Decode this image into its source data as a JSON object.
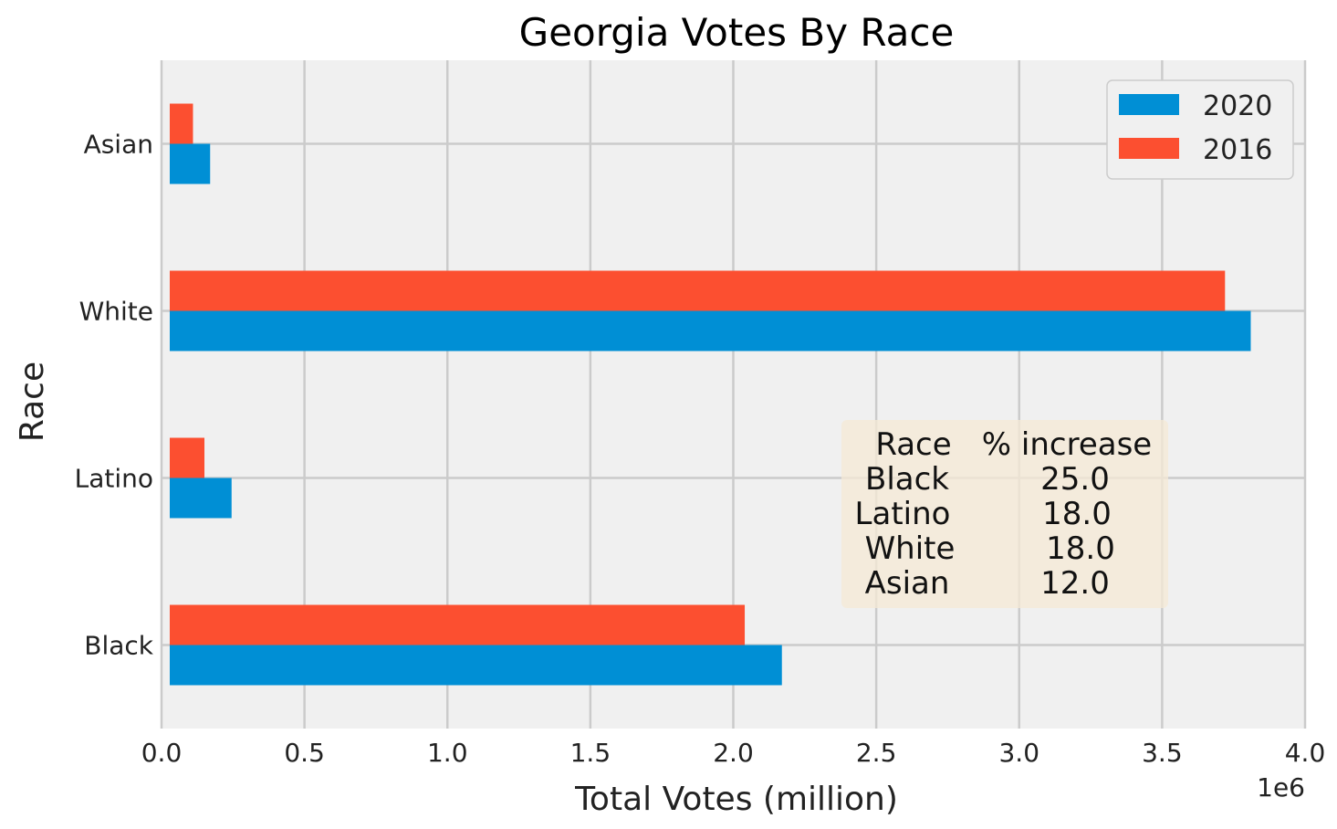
{
  "chart_data": {
    "type": "bar",
    "orientation": "horizontal",
    "title": "Georgia Votes By Race",
    "xlabel": "Total Votes (million)",
    "ylabel": "Race",
    "x_offset_label": "1e6",
    "xlim": [
      0,
      4000000
    ],
    "x_ticks": [
      0,
      500000,
      1000000,
      1500000,
      2000000,
      2500000,
      3000000,
      3500000,
      4000000
    ],
    "x_tick_labels": [
      "0.0",
      "0.5",
      "1.0",
      "1.5",
      "2.0",
      "2.5",
      "3.0",
      "3.5",
      "4.0"
    ],
    "grid": true,
    "legend_position": "top-right",
    "categories": [
      "Black",
      "Latino",
      "White",
      "Asian"
    ],
    "series": [
      {
        "name": "2020",
        "color": "#008fd5",
        "values": [
          2170000,
          245000,
          3810000,
          170000
        ]
      },
      {
        "name": "2016",
        "color": "#fc4f30",
        "values": [
          2040000,
          150000,
          3720000,
          110000
        ]
      }
    ],
    "annotation_table": {
      "headers": [
        "Race",
        "% increase"
      ],
      "rows": [
        [
          "Black",
          "25.0"
        ],
        [
          "Latino",
          "18.0"
        ],
        [
          "White",
          "18.0"
        ],
        [
          "Asian",
          "12.0"
        ]
      ]
    }
  }
}
